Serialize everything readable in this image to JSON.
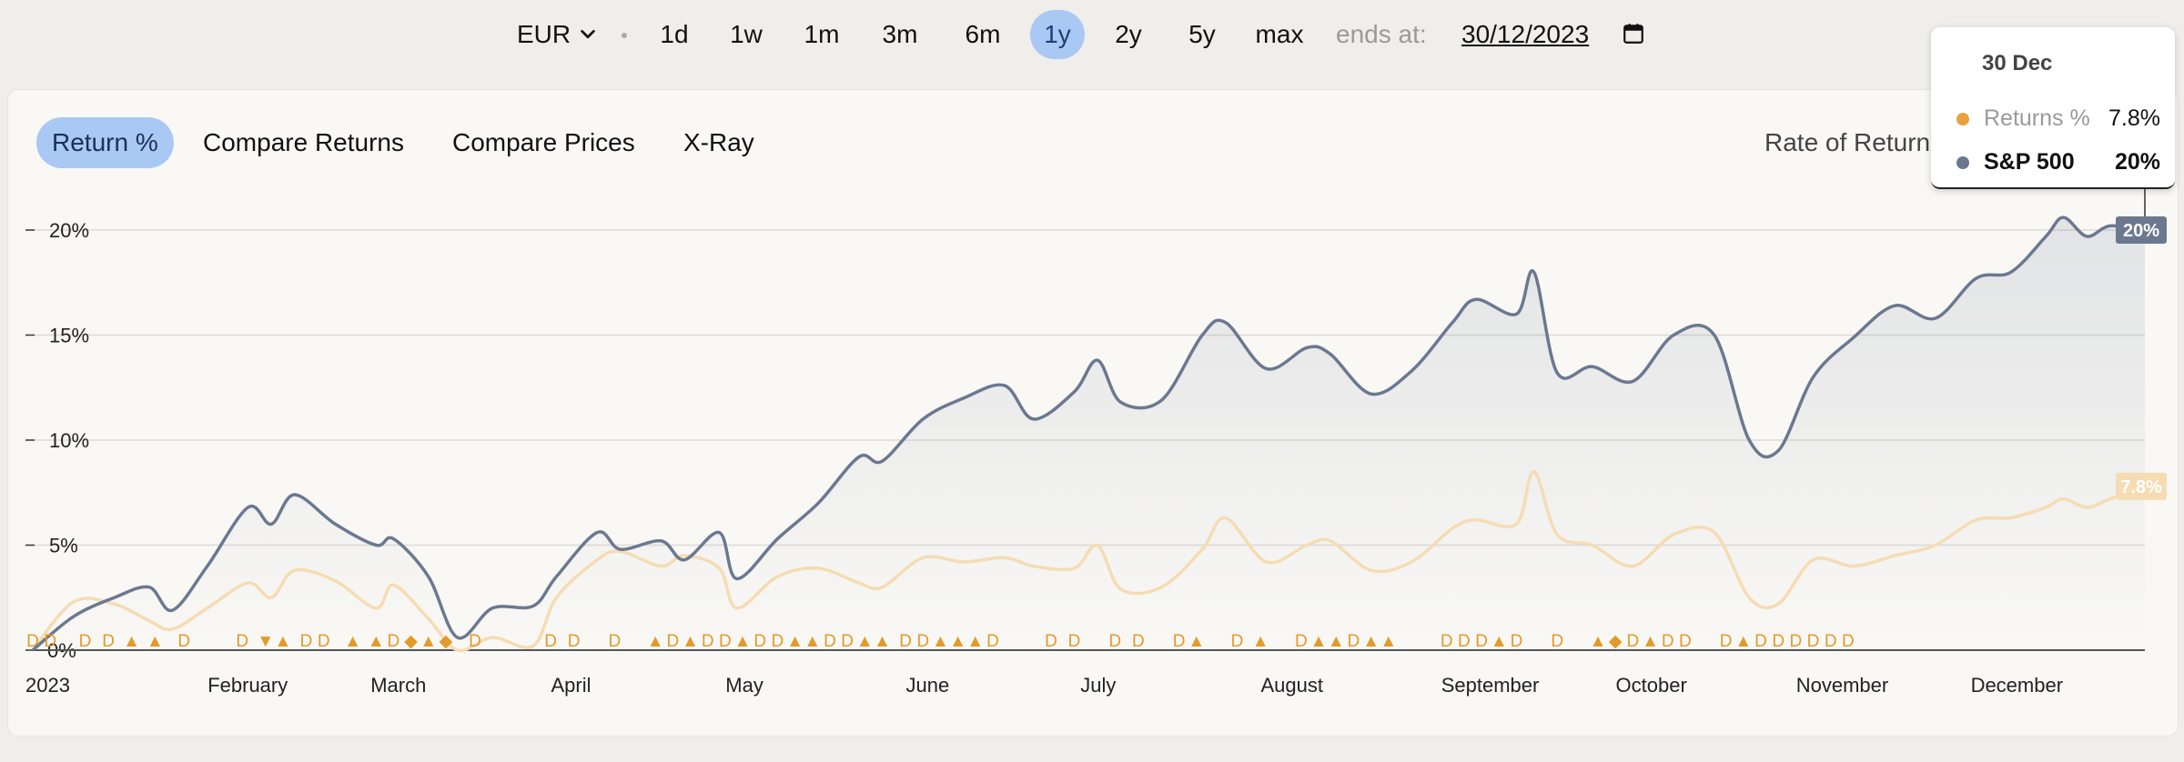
{
  "toolbar": {
    "currency": "EUR",
    "ranges": [
      "1d",
      "1w",
      "1m",
      "3m",
      "6m",
      "1y",
      "2y",
      "5y",
      "max"
    ],
    "active_range": "1y",
    "ends_label": "ends at:",
    "end_date": "30/12/2023"
  },
  "tabs": [
    {
      "label": "Return %",
      "active": true
    },
    {
      "label": "Compare Returns",
      "active": false
    },
    {
      "label": "Compare Prices",
      "active": false
    },
    {
      "label": "X-Ray",
      "active": false
    }
  ],
  "rate_of_return_label": "Rate of Return",
  "tooltip": {
    "date": "30 Dec",
    "rows": [
      {
        "name": "Returns %",
        "value": "7.8%",
        "color": "#e9a23b"
      },
      {
        "name": "S&P 500",
        "value": "20%",
        "color": "#6b7890"
      }
    ]
  },
  "colors": {
    "portfolio": "#f5dcb3",
    "benchmark": "#6b7890",
    "marker": "#e29a2a",
    "accent": "#a9c8f3"
  },
  "chart_data": {
    "type": "line",
    "x_tick_labels": [
      "2023",
      "February",
      "March",
      "April",
      "May",
      "June",
      "July",
      "August",
      "September",
      "October",
      "November",
      "December"
    ],
    "y_tick_labels": [
      "0%",
      "5%",
      "10%",
      "15%",
      "20%"
    ],
    "ylim": [
      0,
      20
    ],
    "grid": true,
    "end_labels": {
      "benchmark": "20%",
      "portfolio": "7.8%"
    },
    "series": [
      {
        "name": "S&P 500",
        "x": [
          "2023-01-01",
          "2023-01-08",
          "2023-01-15",
          "2023-01-21",
          "2023-01-25",
          "2023-01-31",
          "2023-02-07",
          "2023-02-11",
          "2023-02-15",
          "2023-02-22",
          "2023-03-01",
          "2023-03-04",
          "2023-03-10",
          "2023-03-15",
          "2023-03-21",
          "2023-03-28",
          "2023-04-01",
          "2023-04-08",
          "2023-04-12",
          "2023-04-19",
          "2023-04-23",
          "2023-04-29",
          "2023-05-02",
          "2023-05-09",
          "2023-05-16",
          "2023-05-23",
          "2023-05-27",
          "2023-06-03",
          "2023-06-10",
          "2023-06-17",
          "2023-06-22",
          "2023-06-29",
          "2023-07-03",
          "2023-07-07",
          "2023-07-14",
          "2023-07-21",
          "2023-07-25",
          "2023-08-01",
          "2023-08-08",
          "2023-08-12",
          "2023-08-19",
          "2023-08-26",
          "2023-09-02",
          "2023-09-06",
          "2023-09-13",
          "2023-09-16",
          "2023-09-20",
          "2023-09-26",
          "2023-10-03",
          "2023-10-10",
          "2023-10-17",
          "2023-10-23",
          "2023-10-28",
          "2023-11-03",
          "2023-11-10",
          "2023-11-17",
          "2023-11-24",
          "2023-12-01",
          "2023-12-07",
          "2023-12-13",
          "2023-12-16",
          "2023-12-20",
          "2023-12-24",
          "2023-12-30"
        ],
        "values": [
          0,
          1.6,
          2.5,
          3,
          1.9,
          4,
          6.8,
          6,
          7.4,
          6,
          5,
          5.3,
          3.5,
          0.6,
          2,
          2.1,
          3.5,
          5.6,
          4.8,
          5.2,
          4.3,
          5.6,
          3.4,
          5.3,
          7,
          9.2,
          9,
          11,
          12,
          12.6,
          11,
          12.3,
          13.8,
          11.8,
          11.9,
          15,
          15.6,
          13.4,
          14.4,
          14.1,
          12.2,
          13.3,
          15.6,
          16.7,
          16,
          18,
          13.2,
          13.5,
          12.8,
          15,
          15,
          10,
          9.5,
          13,
          14.9,
          16.4,
          15.8,
          17.7,
          18,
          19.7,
          20.6,
          19.7,
          20.2,
          20
        ]
      },
      {
        "name": "Returns %",
        "x": [
          "2023-01-01",
          "2023-01-08",
          "2023-01-15",
          "2023-01-21",
          "2023-01-25",
          "2023-01-31",
          "2023-02-07",
          "2023-02-11",
          "2023-02-15",
          "2023-02-22",
          "2023-03-01",
          "2023-03-04",
          "2023-03-10",
          "2023-03-15",
          "2023-03-21",
          "2023-03-28",
          "2023-04-01",
          "2023-04-08",
          "2023-04-12",
          "2023-04-19",
          "2023-04-23",
          "2023-04-29",
          "2023-05-02",
          "2023-05-09",
          "2023-05-16",
          "2023-05-23",
          "2023-05-27",
          "2023-06-03",
          "2023-06-10",
          "2023-06-17",
          "2023-06-22",
          "2023-06-29",
          "2023-07-03",
          "2023-07-07",
          "2023-07-14",
          "2023-07-21",
          "2023-07-25",
          "2023-08-01",
          "2023-08-08",
          "2023-08-12",
          "2023-08-19",
          "2023-08-26",
          "2023-09-02",
          "2023-09-06",
          "2023-09-13",
          "2023-09-16",
          "2023-09-20",
          "2023-09-26",
          "2023-10-03",
          "2023-10-10",
          "2023-10-17",
          "2023-10-23",
          "2023-10-28",
          "2023-11-03",
          "2023-11-10",
          "2023-11-17",
          "2023-11-24",
          "2023-12-01",
          "2023-12-07",
          "2023-12-13",
          "2023-12-16",
          "2023-12-20",
          "2023-12-24",
          "2023-12-30"
        ],
        "values": [
          0,
          2.3,
          2.2,
          1.4,
          1,
          2,
          3.2,
          2.5,
          3.8,
          3.3,
          2,
          3.1,
          1.5,
          0,
          0.6,
          0.2,
          2.5,
          4.3,
          4.7,
          4,
          4.5,
          3.9,
          2,
          3.5,
          3.9,
          3.2,
          3,
          4.4,
          4.2,
          4.4,
          4,
          3.9,
          5,
          2.9,
          3,
          4.8,
          6.3,
          4.2,
          5,
          5.2,
          3.8,
          4.2,
          5.8,
          6.2,
          6,
          8.5,
          5.5,
          5,
          4,
          5.5,
          5.6,
          2.5,
          2.2,
          4.3,
          4,
          4.5,
          5,
          6.2,
          6.3,
          6.8,
          7.2,
          6.8,
          7.2,
          7.8
        ]
      }
    ],
    "markers": [
      {
        "date": "2023-01-01",
        "symbol": "D"
      },
      {
        "date": "2023-01-04",
        "symbol": "D"
      },
      {
        "date": "2023-01-10",
        "symbol": "D"
      },
      {
        "date": "2023-01-14",
        "symbol": "D"
      },
      {
        "date": "2023-01-18",
        "symbol": "▲"
      },
      {
        "date": "2023-01-22",
        "symbol": "▲"
      },
      {
        "date": "2023-01-27",
        "symbol": "D"
      },
      {
        "date": "2023-02-06",
        "symbol": "D"
      },
      {
        "date": "2023-02-10",
        "symbol": "▼"
      },
      {
        "date": "2023-02-13",
        "symbol": "▲"
      },
      {
        "date": "2023-02-17",
        "symbol": "D"
      },
      {
        "date": "2023-02-20",
        "symbol": "D"
      },
      {
        "date": "2023-02-25",
        "symbol": "▲"
      },
      {
        "date": "2023-03-01",
        "symbol": "▲"
      },
      {
        "date": "2023-03-04",
        "symbol": "D"
      },
      {
        "date": "2023-03-07",
        "symbol": "◆"
      },
      {
        "date": "2023-03-10",
        "symbol": "▲"
      },
      {
        "date": "2023-03-13",
        "symbol": "◆"
      },
      {
        "date": "2023-03-18",
        "symbol": "D"
      },
      {
        "date": "2023-03-31",
        "symbol": "D"
      },
      {
        "date": "2023-04-04",
        "symbol": "D"
      },
      {
        "date": "2023-04-11",
        "symbol": "D"
      },
      {
        "date": "2023-04-18",
        "symbol": "▲"
      },
      {
        "date": "2023-04-21",
        "symbol": "D"
      },
      {
        "date": "2023-04-24",
        "symbol": "▲"
      },
      {
        "date": "2023-04-27",
        "symbol": "D"
      },
      {
        "date": "2023-04-30",
        "symbol": "D"
      },
      {
        "date": "2023-05-03",
        "symbol": "▲"
      },
      {
        "date": "2023-05-06",
        "symbol": "D"
      },
      {
        "date": "2023-05-09",
        "symbol": "D"
      },
      {
        "date": "2023-05-12",
        "symbol": "▲"
      },
      {
        "date": "2023-05-15",
        "symbol": "▲"
      },
      {
        "date": "2023-05-18",
        "symbol": "D"
      },
      {
        "date": "2023-05-21",
        "symbol": "D"
      },
      {
        "date": "2023-05-24",
        "symbol": "▲"
      },
      {
        "date": "2023-05-27",
        "symbol": "▲"
      },
      {
        "date": "2023-05-31",
        "symbol": "D"
      },
      {
        "date": "2023-06-03",
        "symbol": "D"
      },
      {
        "date": "2023-06-06",
        "symbol": "▲"
      },
      {
        "date": "2023-06-09",
        "symbol": "▲"
      },
      {
        "date": "2023-06-12",
        "symbol": "▲"
      },
      {
        "date": "2023-06-15",
        "symbol": "D"
      },
      {
        "date": "2023-06-25",
        "symbol": "D"
      },
      {
        "date": "2023-06-29",
        "symbol": "D"
      },
      {
        "date": "2023-07-06",
        "symbol": "D"
      },
      {
        "date": "2023-07-10",
        "symbol": "D"
      },
      {
        "date": "2023-07-17",
        "symbol": "D"
      },
      {
        "date": "2023-07-20",
        "symbol": "▲"
      },
      {
        "date": "2023-07-27",
        "symbol": "D"
      },
      {
        "date": "2023-07-31",
        "symbol": "▲"
      },
      {
        "date": "2023-08-07",
        "symbol": "D"
      },
      {
        "date": "2023-08-10",
        "symbol": "▲"
      },
      {
        "date": "2023-08-13",
        "symbol": "▲"
      },
      {
        "date": "2023-08-16",
        "symbol": "D"
      },
      {
        "date": "2023-08-19",
        "symbol": "▲"
      },
      {
        "date": "2023-08-22",
        "symbol": "▲"
      },
      {
        "date": "2023-09-01",
        "symbol": "D"
      },
      {
        "date": "2023-09-04",
        "symbol": "D"
      },
      {
        "date": "2023-09-07",
        "symbol": "D"
      },
      {
        "date": "2023-09-10",
        "symbol": "▲"
      },
      {
        "date": "2023-09-13",
        "symbol": "D"
      },
      {
        "date": "2023-09-20",
        "symbol": "D"
      },
      {
        "date": "2023-09-27",
        "symbol": "▲"
      },
      {
        "date": "2023-09-30",
        "symbol": "◆"
      },
      {
        "date": "2023-10-03",
        "symbol": "D"
      },
      {
        "date": "2023-10-06",
        "symbol": "▲"
      },
      {
        "date": "2023-10-09",
        "symbol": "D"
      },
      {
        "date": "2023-10-12",
        "symbol": "D"
      },
      {
        "date": "2023-10-19",
        "symbol": "D"
      },
      {
        "date": "2023-10-22",
        "symbol": "▲"
      },
      {
        "date": "2023-10-25",
        "symbol": "D"
      },
      {
        "date": "2023-10-28",
        "symbol": "D"
      },
      {
        "date": "2023-10-31",
        "symbol": "D"
      },
      {
        "date": "2023-11-03",
        "symbol": "D"
      },
      {
        "date": "2023-11-06",
        "symbol": "D"
      },
      {
        "date": "2023-11-09",
        "symbol": "D"
      }
    ]
  }
}
